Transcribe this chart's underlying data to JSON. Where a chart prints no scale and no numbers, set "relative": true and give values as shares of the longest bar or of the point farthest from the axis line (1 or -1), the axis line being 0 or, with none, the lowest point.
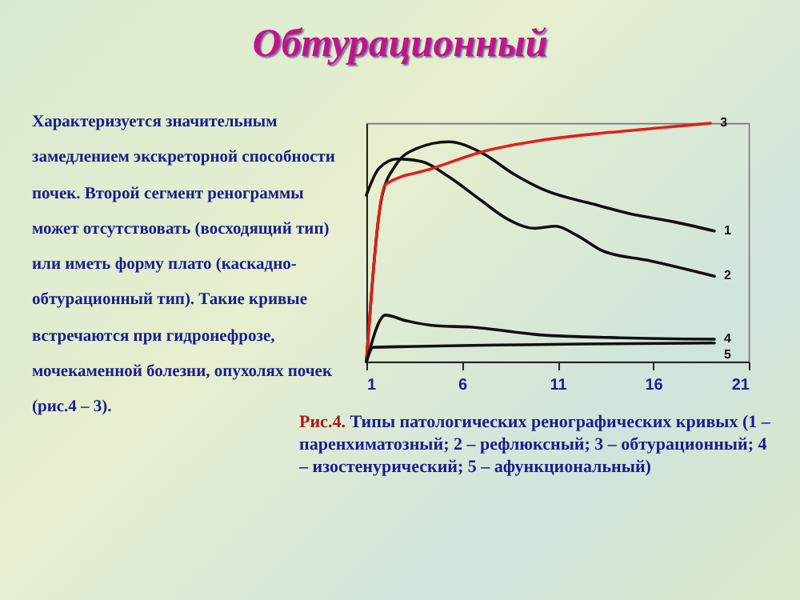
{
  "chart_data": {
    "type": "line",
    "title": "Обтурационный",
    "relative": true,
    "xlim": [
      1,
      21
    ],
    "xticks": [
      1,
      6,
      11,
      16,
      21
    ],
    "grid": false,
    "legend": false,
    "marker": "none",
    "line_style": "solid",
    "annotations": [
      "Характеризуется значительным замедлением экскреторной способности почек. Второй сегмент ренограммы может отсутствовать (восходящий тип) или иметь форму плато (каскадно-обтурационный тип). Такие кривые встречаются при гидронефрозе, мочекаменной болезни, опухолях почек (рис.4 – 3).",
      "Рис.4.",
      "Типы патологических ренографических кривых (1 – паренхиматозный; 2 – рефлюксный;  3 – обтурационный; 4 – изостенурический; 5 – афункциональный)"
    ],
    "series": [
      {
        "name": "1",
        "color": "#111111",
        "x": [
          1,
          1.8,
          2.5,
          3.6,
          5.3,
          7.0,
          8.7,
          10.3,
          12.9,
          14.8,
          17.1,
          19.2
        ],
        "values": [
          0,
          0.687,
          0.82,
          0.893,
          0.922,
          0.877,
          0.787,
          0.72,
          0.66,
          0.62,
          0.586,
          0.548
        ]
      },
      {
        "name": "2",
        "color": "#111111",
        "x": [
          1,
          1.65,
          2.6,
          3.9,
          5.3,
          7.0,
          8.4,
          9.8,
          10.9,
          12.0,
          13.4,
          15.7,
          19.2
        ],
        "values": [
          0.698,
          0.81,
          0.85,
          0.839,
          0.776,
          0.676,
          0.597,
          0.559,
          0.568,
          0.53,
          0.463,
          0.425,
          0.358
        ]
      },
      {
        "name": "3",
        "color": "#e0201a",
        "x": [
          1,
          2.0,
          4.45,
          7.25,
          10.1,
          12.9,
          16.0,
          19.0
        ],
        "values": [
          0,
          0.743,
          0.81,
          0.884,
          0.928,
          0.955,
          0.978,
          1.0
        ]
      },
      {
        "name": "4",
        "color": "#111111",
        "x": [
          1,
          2.0,
          3.05,
          4.7,
          6.4,
          10.1,
          14.3,
          19.2
        ],
        "values": [
          0,
          0.195,
          0.172,
          0.15,
          0.145,
          0.112,
          0.1,
          0.094
        ]
      },
      {
        "name": "5",
        "color": "#111111",
        "x": [
          1,
          1.36,
          19.2
        ],
        "values": [
          0,
          0.06,
          0.078
        ]
      }
    ]
  }
}
